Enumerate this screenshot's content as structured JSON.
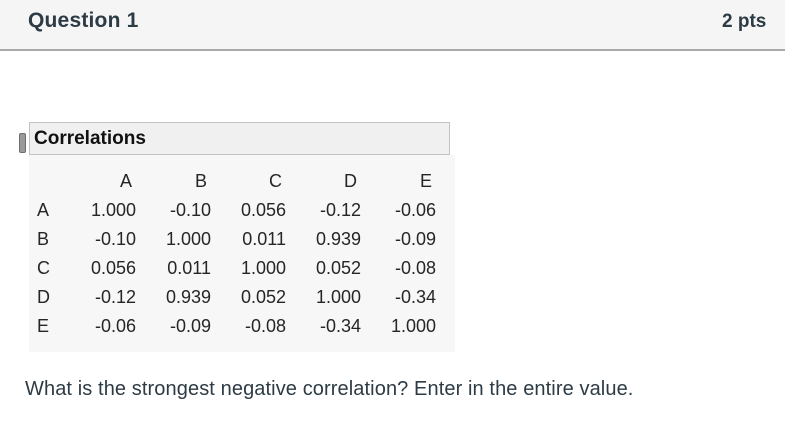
{
  "header": {
    "title": "Question 1",
    "points": "2 pts"
  },
  "table": {
    "title": "Correlations",
    "columns": [
      "A",
      "B",
      "C",
      "D",
      "E"
    ],
    "rows": [
      {
        "label": "A",
        "values": [
          "1.000",
          "-0.10",
          "0.056",
          "-0.12",
          "-0.06"
        ]
      },
      {
        "label": "B",
        "values": [
          "-0.10",
          "1.000",
          "0.011",
          "0.939",
          "-0.09"
        ]
      },
      {
        "label": "C",
        "values": [
          "0.056",
          "0.011",
          "1.000",
          "0.052",
          "-0.08"
        ]
      },
      {
        "label": "D",
        "values": [
          "-0.12",
          "0.939",
          "0.052",
          "1.000",
          "-0.34"
        ]
      },
      {
        "label": "E",
        "values": [
          "-0.06",
          "-0.09",
          "-0.08",
          "-0.34",
          "1.000"
        ]
      }
    ]
  },
  "question": {
    "text": "What is the strongest negative correlation? Enter in the entire value."
  },
  "colors": {
    "header_bg": "#f5f5f5",
    "header_border": "#aaaaaa",
    "heading_text": "#2d3b45",
    "report_titlebar_bg": "#f0f0f0",
    "report_body_bg": "#f7f7f7",
    "table_text": "#262626"
  }
}
